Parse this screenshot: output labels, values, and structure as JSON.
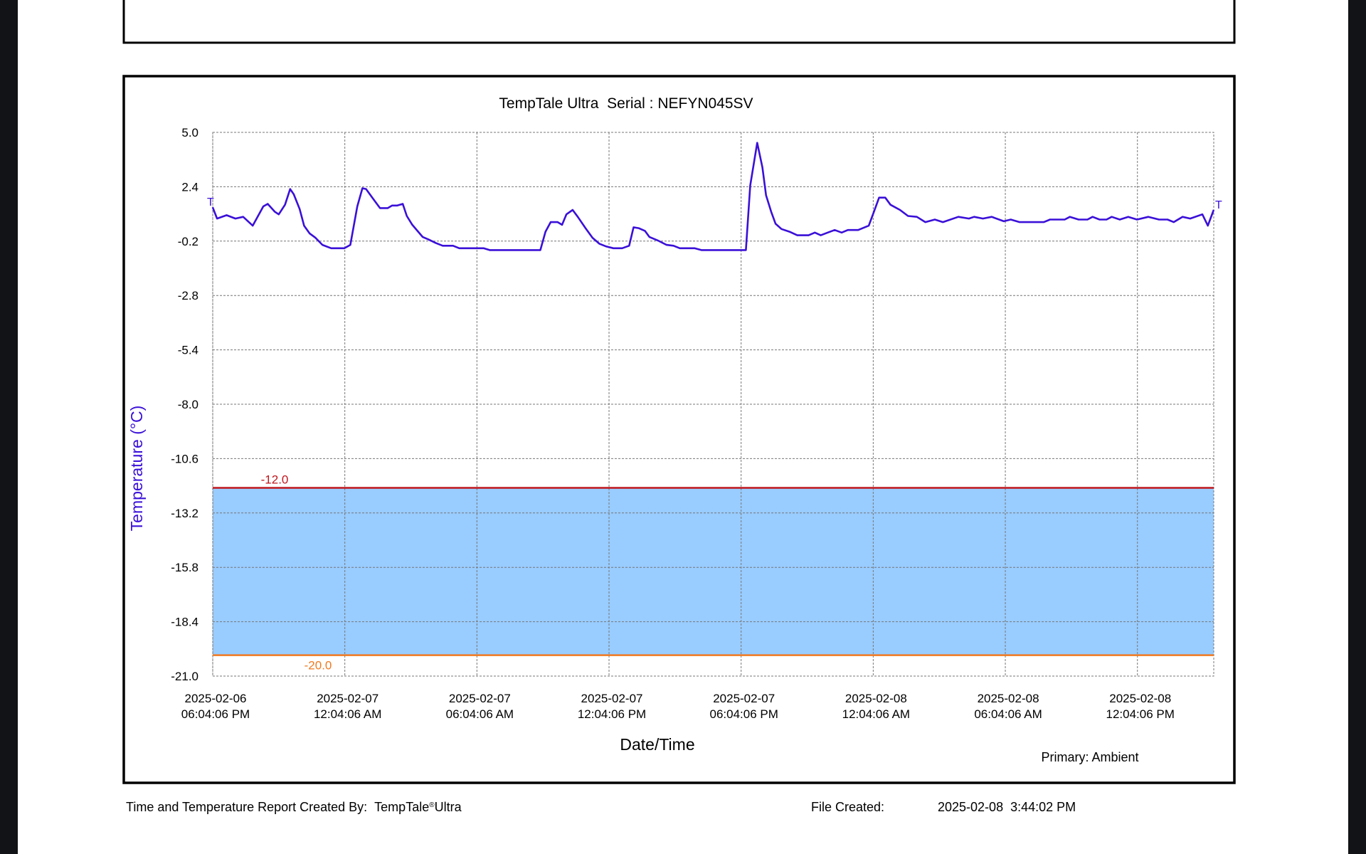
{
  "chart_data": {
    "type": "line",
    "title": "TempTale Ultra  Serial : NEFYN045SV",
    "x_label": "Date/Time",
    "y_label": "Temperature (°C)",
    "end_marker": "T",
    "xlim": [
      "2025-02-06T18:04:06",
      "2025-02-08T15:32:06"
    ],
    "xticks": [
      {
        "value": "2025-02-06T18:04:06",
        "label": [
          "2025-02-06",
          "06:04:06 PM"
        ]
      },
      {
        "value": "2025-02-07T00:04:06",
        "label": [
          "2025-02-07",
          "12:04:06 AM"
        ]
      },
      {
        "value": "2025-02-07T06:04:06",
        "label": [
          "2025-02-07",
          "06:04:06 AM"
        ]
      },
      {
        "value": "2025-02-07T12:04:06",
        "label": [
          "2025-02-07",
          "12:04:06 PM"
        ]
      },
      {
        "value": "2025-02-07T18:04:06",
        "label": [
          "2025-02-07",
          "06:04:06 PM"
        ]
      },
      {
        "value": "2025-02-08T00:04:06",
        "label": [
          "2025-02-08",
          "12:04:06 AM"
        ]
      },
      {
        "value": "2025-02-08T06:04:06",
        "label": [
          "2025-02-08",
          "06:04:06 AM"
        ]
      },
      {
        "value": "2025-02-08T12:04:06",
        "label": [
          "2025-02-08",
          "12:04:06 PM"
        ]
      }
    ],
    "ylim": [
      -21,
      5
    ],
    "yticks": [
      {
        "value": 5,
        "label": "5.0"
      },
      2.4,
      -0.2,
      -2.8,
      -5.4,
      {
        "value": -8,
        "label": "-8.0"
      },
      -10.6,
      -13.2,
      -15.8,
      -18.4,
      {
        "value": -21,
        "label": "-21.0"
      }
    ],
    "grid": true,
    "thresholds": [
      {
        "value": -12,
        "label": "-12.0",
        "color": "#c0161c"
      },
      {
        "value": -20,
        "label": "-20.0",
        "color": "#f07a20"
      }
    ],
    "band_color": "#99ccff",
    "series": [
      {
        "name": "Primary: Ambient",
        "color": "#3a10d8",
        "x": [
          "2025-02-06T18:04",
          "2025-02-06T18:16",
          "2025-02-06T18:42",
          "2025-02-06T19:06",
          "2025-02-06T19:27",
          "2025-02-06T19:53",
          "2025-02-06T20:22",
          "2025-02-06T20:34",
          "2025-02-06T20:53",
          "2025-02-06T21:04",
          "2025-02-06T21:21",
          "2025-02-06T21:35",
          "2025-02-06T21:45",
          "2025-02-06T22:01",
          "2025-02-06T22:13",
          "2025-02-06T22:28",
          "2025-02-06T22:44",
          "2025-02-06T23:03",
          "2025-02-06T23:27",
          "2025-02-07T00:03",
          "2025-02-07T00:19",
          "2025-02-07T00:38",
          "2025-02-07T00:52",
          "2025-02-07T01:02",
          "2025-02-07T01:21",
          "2025-02-07T01:40",
          "2025-02-07T02:01",
          "2025-02-07T02:13",
          "2025-02-07T02:27",
          "2025-02-07T02:42",
          "2025-02-07T02:53",
          "2025-02-07T03:08",
          "2025-02-07T03:24",
          "2025-02-07T03:36",
          "2025-02-07T03:53",
          "2025-02-07T04:12",
          "2025-02-07T04:31",
          "2025-02-07T04:59",
          "2025-02-07T05:16",
          "2025-02-07T06:22",
          "2025-02-07T06:39",
          "2025-02-07T08:57",
          "2025-02-07T09:11",
          "2025-02-07T09:25",
          "2025-02-07T09:44",
          "2025-02-07T09:56",
          "2025-02-07T10:08",
          "2025-02-07T10:25",
          "2025-02-07T10:39",
          "2025-02-07T11:00",
          "2025-02-07T11:19",
          "2025-02-07T11:38",
          "2025-02-07T11:57",
          "2025-02-07T12:16",
          "2025-02-07T12:40",
          "2025-02-07T12:59",
          "2025-02-07T13:11",
          "2025-02-07T13:25",
          "2025-02-07T13:42",
          "2025-02-07T13:54",
          "2025-02-07T14:17",
          "2025-02-07T14:41",
          "2025-02-07T15:00",
          "2025-02-07T15:17",
          "2025-02-07T15:57",
          "2025-02-07T16:16",
          "2025-02-07T18:17",
          "2025-02-07T18:29",
          "2025-02-07T18:48",
          "2025-02-07T19:02",
          "2025-02-07T19:12",
          "2025-02-07T19:26",
          "2025-02-07T19:38",
          "2025-02-07T19:54",
          "2025-02-07T20:16",
          "2025-02-07T20:37",
          "2025-02-07T21:08",
          "2025-02-07T21:25",
          "2025-02-07T21:41",
          "2025-02-07T22:00",
          "2025-02-07T22:19",
          "2025-02-07T22:38",
          "2025-02-07T22:55",
          "2025-02-07T23:23",
          "2025-02-07T23:52",
          "2025-02-08T00:06",
          "2025-02-08T00:20",
          "2025-02-08T00:37",
          "2025-02-08T00:51",
          "2025-02-08T01:17",
          "2025-02-08T01:39",
          "2025-02-08T02:03",
          "2025-02-08T02:26",
          "2025-02-08T02:52",
          "2025-02-08T03:14",
          "2025-02-08T03:56",
          "2025-02-08T04:25",
          "2025-02-08T04:39",
          "2025-02-08T05:03",
          "2025-02-08T05:27",
          "2025-02-08T06:00",
          "2025-02-08T06:19",
          "2025-02-08T06:43",
          "2025-02-08T07:49",
          "2025-02-08T08:06",
          "2025-02-08T08:46",
          "2025-02-08T09:00",
          "2025-02-08T09:24",
          "2025-02-08T09:48",
          "2025-02-08T10:02",
          "2025-02-08T10:21",
          "2025-02-08T10:40",
          "2025-02-08T10:54",
          "2025-02-08T11:16",
          "2025-02-08T11:39",
          "2025-02-08T12:03",
          "2025-02-08T12:34",
          "2025-02-08T13:03",
          "2025-02-08T13:26",
          "2025-02-08T13:43",
          "2025-02-08T14:07",
          "2025-02-08T14:28",
          "2025-02-08T15:01",
          "2025-02-08T15:16",
          "2025-02-08T15:32"
        ],
        "values": [
          1.42,
          0.88,
          1.04,
          0.88,
          0.96,
          0.54,
          1.46,
          1.58,
          1.21,
          1.08,
          1.54,
          2.29,
          2.04,
          1.33,
          0.54,
          0.17,
          -0.04,
          -0.38,
          -0.54,
          -0.54,
          -0.38,
          1.46,
          2.33,
          2.29,
          1.83,
          1.38,
          1.38,
          1.5,
          1.5,
          1.58,
          1.0,
          0.58,
          0.25,
          0.0,
          -0.13,
          -0.29,
          -0.42,
          -0.42,
          -0.54,
          -0.54,
          -0.63,
          -0.63,
          0.25,
          0.71,
          0.71,
          0.58,
          1.08,
          1.29,
          0.96,
          0.42,
          -0.04,
          -0.33,
          -0.46,
          -0.54,
          -0.54,
          -0.42,
          0.46,
          0.42,
          0.29,
          0.0,
          -0.17,
          -0.38,
          -0.42,
          -0.54,
          -0.54,
          -0.63,
          -0.63,
          2.46,
          4.5,
          3.33,
          2.0,
          1.21,
          0.63,
          0.38,
          0.25,
          0.08,
          0.08,
          0.21,
          0.08,
          0.21,
          0.33,
          0.21,
          0.33,
          0.33,
          0.54,
          1.21,
          1.88,
          1.88,
          1.54,
          1.29,
          1.0,
          0.96,
          0.71,
          0.83,
          0.71,
          0.96,
          0.88,
          0.96,
          0.88,
          0.96,
          0.75,
          0.83,
          0.71,
          0.71,
          0.83,
          0.83,
          0.96,
          0.83,
          0.83,
          0.96,
          0.83,
          0.83,
          0.96,
          0.83,
          0.96,
          0.83,
          0.96,
          0.83,
          0.83,
          0.71,
          0.96,
          0.88,
          1.08,
          0.54,
          1.29
        ]
      }
    ]
  },
  "footer": {
    "created_by_label": "Time and Temperature Report Created By:",
    "product": "TempTale",
    "registered": "®",
    "product_suffix": "Ultra",
    "file_created_label": "File Created:",
    "file_created": "2025-02-08  3:44:02 PM"
  }
}
